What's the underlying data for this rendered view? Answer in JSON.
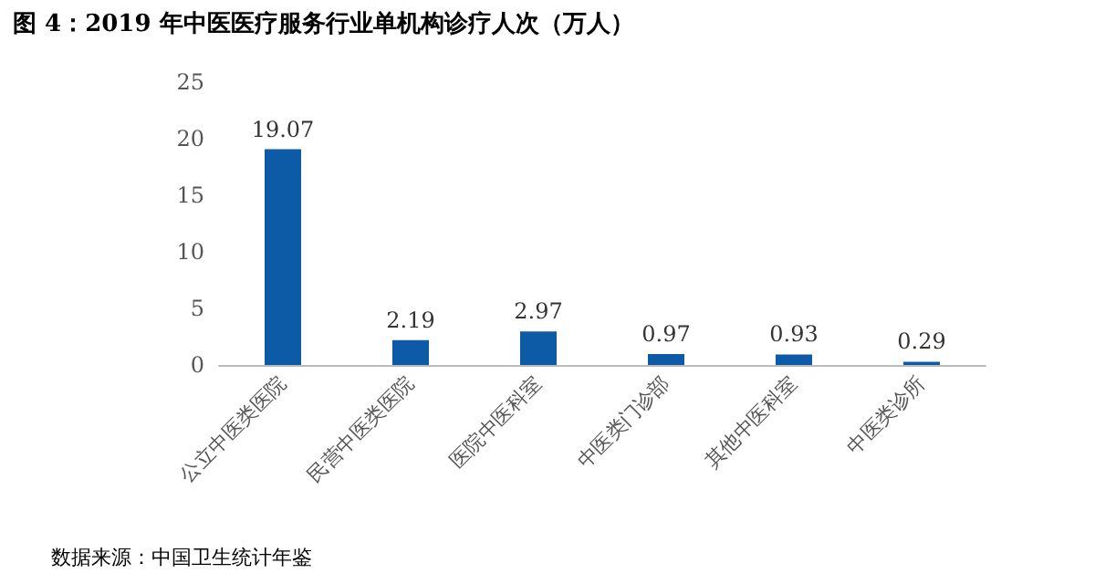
{
  "chart_data": {
    "type": "bar",
    "title": "图 4：2019 年中医医疗服务行业单机构诊疗人次（万人）",
    "categories": [
      "公立中医类医院",
      "民营中医类医院",
      "医院中医科室",
      "中医类门诊部",
      "其他中医科室",
      "中医类诊所"
    ],
    "values": [
      19.07,
      2.19,
      2.97,
      0.97,
      0.93,
      0.29
    ],
    "color": "#0d5aa7",
    "ylim": [
      0,
      25
    ],
    "yticks": [
      0,
      5,
      10,
      15,
      20,
      25
    ],
    "grid": false,
    "data_labels": true,
    "annotations": [
      "数据来源：中国卫生统计年鉴"
    ]
  }
}
